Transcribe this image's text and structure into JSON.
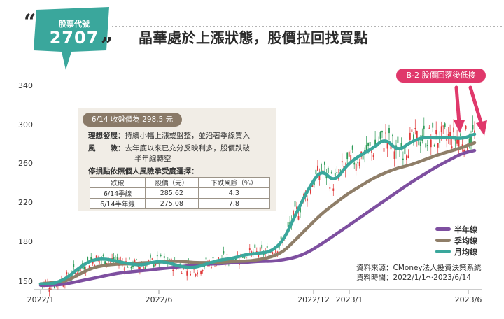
{
  "badge": {
    "label": "股票代號",
    "code": "2707"
  },
  "title": "晶華處於上漲狀態，股價拉回找買點",
  "callout": "B-2 股價回落後低接",
  "info_box": {
    "header": "6/14 收盤價為 298.5 元",
    "ideal_label": "理想發展：",
    "ideal_text": "持續小幅上漲或盤整，並沿著季線買入",
    "risk_label": "風　　險：",
    "risk_text_1": "去年底以來已充分反映利多，股價跌破",
    "risk_text_2": "半年線轉空",
    "stop_loss_title": "停損點依照個人風險承受度選擇：",
    "table": {
      "headers": [
        "跌破",
        "股價（元）",
        "下跌風險（%）"
      ],
      "rows": [
        [
          "6/14季線",
          "285.62",
          "4.3"
        ],
        [
          "6/14半年線",
          "275.08",
          "7.8"
        ]
      ]
    }
  },
  "legend": [
    {
      "label": "半年線",
      "color": "#7e4fa0"
    },
    {
      "label": "季均線",
      "color": "#8f7e68"
    },
    {
      "label": "月均線",
      "color": "#3aa79c"
    }
  ],
  "source": {
    "line1": "資料來源：CMoney法人投資決策系統",
    "line2": "資料時間：2022/1/1～2023/6/14"
  },
  "colors": {
    "badge": "#3aa79c",
    "up": "#e03a3a",
    "down": "#2e9b58",
    "callout": "#e0386b"
  },
  "chart_data": {
    "type": "line",
    "x_ticks": [
      "2022/1",
      "2022/6",
      "2022/12",
      "2023/1",
      "2023/6"
    ],
    "y_ticks": [
      150,
      180,
      220,
      260,
      300,
      340
    ],
    "ylim": [
      140,
      345
    ],
    "grid": false,
    "series": [
      {
        "name": "半年線",
        "values": [
          147,
          147,
          148,
          150,
          152,
          154,
          156,
          157,
          158,
          159,
          160,
          161,
          162,
          163,
          163,
          164,
          164,
          165,
          165,
          166,
          168,
          172,
          178,
          186,
          195,
          204,
          213,
          222,
          231,
          240,
          248,
          256,
          263,
          270,
          273
        ]
      },
      {
        "name": "季均線",
        "values": [
          148,
          149,
          150,
          155,
          160,
          162,
          163,
          163,
          164,
          164,
          165,
          165,
          164,
          164,
          164,
          165,
          165,
          166,
          168,
          172,
          182,
          195,
          208,
          218,
          228,
          236,
          244,
          250,
          255,
          258,
          263,
          268,
          272,
          276,
          281
        ]
      },
      {
        "name": "月均線",
        "values": [
          148,
          148,
          152,
          160,
          166,
          167,
          165,
          163,
          162,
          165,
          164,
          161,
          160,
          163,
          166,
          167,
          170,
          171,
          172,
          180,
          208,
          234,
          254,
          240,
          258,
          268,
          275,
          286,
          272,
          282,
          287,
          286,
          287,
          285,
          290
        ]
      }
    ]
  }
}
